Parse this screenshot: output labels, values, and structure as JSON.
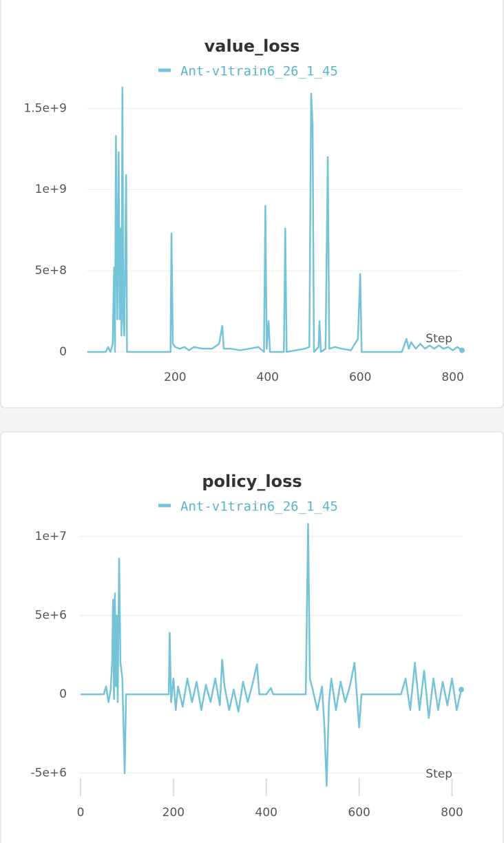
{
  "chart_data": [
    {
      "type": "line",
      "title": "value_loss",
      "xlabel": "Step",
      "x": [
        10,
        50,
        55,
        60,
        65,
        68,
        70,
        72,
        75,
        78,
        80,
        82,
        84,
        86,
        88,
        90,
        94,
        96,
        100,
        190,
        192,
        195,
        200,
        210,
        220,
        230,
        240,
        260,
        280,
        295,
        302,
        305,
        320,
        340,
        360,
        380,
        392,
        395,
        398,
        402,
        405,
        435,
        438,
        441,
        480,
        490,
        494,
        497,
        500,
        510,
        512,
        515,
        525,
        530,
        533,
        545,
        560,
        580,
        595,
        600,
        603,
        690,
        700,
        705,
        710,
        720,
        730,
        740,
        750,
        760,
        770,
        780,
        790,
        800,
        810,
        820
      ],
      "series": [
        {
          "name": "Ant-v1train6_26_1_45",
          "color": "#74c3d6",
          "values": [
            0,
            0,
            30000000.0,
            0,
            50000000.0,
            520000000.0,
            0,
            1330000000.0,
            200000000.0,
            1230000000.0,
            200000000.0,
            760000000.0,
            100000000.0,
            1630000000.0,
            200000000.0,
            100000000.0,
            1090000000.0,
            0,
            0,
            0,
            730000000.0,
            50000000.0,
            30000000.0,
            20000000.0,
            30000000.0,
            10000000.0,
            30000000.0,
            20000000.0,
            20000000.0,
            50000000.0,
            160000000.0,
            20000000.0,
            20000000.0,
            10000000.0,
            20000000.0,
            30000000.0,
            0,
            900000000.0,
            20000000.0,
            190000000.0,
            0,
            0,
            760000000.0,
            0,
            20000000.0,
            30000000.0,
            1590000000.0,
            1400000000.0,
            0,
            30000000.0,
            190000000.0,
            0,
            20000000.0,
            1200000000.0,
            20000000.0,
            30000000.0,
            20000000.0,
            10000000.0,
            80000000.0,
            480000000.0,
            0,
            0,
            80000000.0,
            20000000.0,
            60000000.0,
            20000000.0,
            50000000.0,
            20000000.0,
            40000000.0,
            20000000.0,
            40000000.0,
            20000000.0,
            30000000.0,
            10000000.0,
            30000000.0,
            10000000.0
          ]
        }
      ],
      "xlim": [
        0,
        820
      ],
      "xticks": [
        200,
        400,
        600,
        800
      ],
      "ylim": [
        0,
        1650000000.0
      ],
      "yticks": [
        0,
        {
          "value": 500000000.0,
          "label": "5e+8"
        },
        {
          "value": 1000000000.0,
          "label": "1e+9"
        },
        {
          "value": 1500000000.0,
          "label": "1.5e+9"
        }
      ],
      "grid": true
    },
    {
      "type": "line",
      "title": "policy_loss",
      "xlabel": "Step",
      "x": [
        0,
        50,
        55,
        60,
        65,
        68,
        70,
        72,
        74,
        76,
        78,
        80,
        83,
        86,
        90,
        95,
        98,
        190,
        192,
        195,
        200,
        205,
        210,
        220,
        230,
        240,
        250,
        260,
        270,
        280,
        290,
        300,
        305,
        310,
        320,
        330,
        340,
        350,
        360,
        370,
        380,
        385,
        400,
        410,
        415,
        485,
        490,
        494,
        500,
        510,
        520,
        525,
        530,
        535,
        540,
        550,
        560,
        570,
        580,
        590,
        600,
        605,
        690,
        700,
        710,
        720,
        730,
        740,
        750,
        760,
        770,
        780,
        790,
        800,
        810,
        820
      ],
      "series": [
        {
          "name": "Ant-v1train6_26_1_45",
          "color": "#74c3d6",
          "values": [
            0,
            0,
            500000.0,
            -500000.0,
            300000.0,
            2100000.0,
            6000000.0,
            -300000.0,
            6400000.0,
            500000.0,
            5000000.0,
            -500000.0,
            8600000.0,
            2000000.0,
            1000000.0,
            -5000000.0,
            0,
            0,
            3900000.0,
            -500000.0,
            1000000.0,
            -1000000.0,
            500000.0,
            -800000.0,
            1000000.0,
            -500000.0,
            800000.0,
            -1000000.0,
            600000.0,
            -500000.0,
            1000000.0,
            -700000.0,
            2200000.0,
            500000.0,
            -1000000.0,
            300000.0,
            -1100000.0,
            800000.0,
            -500000.0,
            600000.0,
            1900000.0,
            0,
            0,
            400000.0,
            0,
            0,
            10800000.0,
            1000000.0,
            300000.0,
            -1000000.0,
            500000.0,
            -2000000.0,
            -5800000.0,
            -500000.0,
            1000000.0,
            -1000000.0,
            800000.0,
            -500000.0,
            500000.0,
            2000000.0,
            -2100000.0,
            0,
            0,
            1000000.0,
            -1000000.0,
            2000000.0,
            -1000000.0,
            1500000.0,
            -1500000.0,
            1000000.0,
            -1000000.0,
            800000.0,
            -700000.0,
            1000000.0,
            -1000000.0,
            300000.0
          ]
        }
      ],
      "xlim": [
        0,
        820
      ],
      "xticks": [
        0,
        200,
        400,
        600,
        800
      ],
      "ylim": [
        -5800000.0,
        11000000.0
      ],
      "yticks": [
        {
          "value": -5000000.0,
          "label": "-5e+6"
        },
        0,
        {
          "value": 5000000.0,
          "label": "5e+6"
        },
        {
          "value": 10000000.0,
          "label": "1e+7"
        }
      ],
      "grid": true
    }
  ]
}
